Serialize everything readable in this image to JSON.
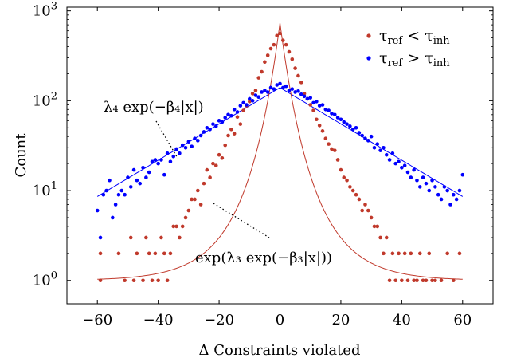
{
  "chart_data": {
    "type": "scatter",
    "xlabel": "Δ Constraints violated",
    "ylabel": "Count",
    "xscale": "linear",
    "yscale": "log",
    "xlim": [
      -70,
      70
    ],
    "ylim": [
      0.55,
      1100
    ],
    "x_ticks": [
      -60,
      -40,
      -20,
      0,
      20,
      40,
      60
    ],
    "x_tick_labels": [
      "−60",
      "−40",
      "−20",
      "0",
      "20",
      "40",
      "60"
    ],
    "y_ticks": [
      1,
      10,
      100,
      1000
    ],
    "y_tick_labels": [
      {
        "base": "10",
        "exp": "0"
      },
      {
        "base": "10",
        "exp": "1"
      },
      {
        "base": "10",
        "exp": "2"
      },
      {
        "base": "10",
        "exp": "3"
      }
    ],
    "grid": false,
    "legend_position": "top-right",
    "legend": [
      {
        "series": "red",
        "label_parts": [
          {
            "t": "τ",
            "sub": "ref"
          },
          {
            "t": " < "
          },
          {
            "t": "τ",
            "sub": "inh"
          }
        ]
      },
      {
        "series": "blue",
        "label_parts": [
          {
            "t": "τ",
            "sub": "ref"
          },
          {
            "t": " > "
          },
          {
            "t": "τ",
            "sub": "inh"
          }
        ]
      }
    ],
    "annotations": [
      {
        "text": "λ₄ exp(−β₄|x|)",
        "target": "blue-fit"
      },
      {
        "text": "exp(λ₃ exp(−β₃|x|))",
        "target": "red-fit"
      }
    ],
    "fits": [
      {
        "series": "blue",
        "form": "lambda4*exp(-beta4*|x|)",
        "lambda": 140,
        "beta": 0.0465
      },
      {
        "series": "red",
        "form": "exp(lambda3*exp(-beta3*|x|))",
        "lambda": 6.6,
        "beta": 0.0898
      }
    ],
    "series": [
      {
        "key": "red",
        "color": "#c0392b",
        "points": [
          [
            -59,
            2
          ],
          [
            -59,
            1
          ],
          [
            -53,
            2
          ],
          [
            -51,
            1
          ],
          [
            -49,
            3
          ],
          [
            -48,
            1
          ],
          [
            -47,
            2
          ],
          [
            -45,
            1
          ],
          [
            -44,
            3
          ],
          [
            -43,
            2
          ],
          [
            -42,
            1
          ],
          [
            -41,
            2
          ],
          [
            -40,
            1
          ],
          [
            -39,
            3
          ],
          [
            -38,
            2
          ],
          [
            -37,
            1
          ],
          [
            -36,
            2
          ],
          [
            -35,
            4
          ],
          [
            -34,
            4
          ],
          [
            -33,
            3
          ],
          [
            -32,
            4
          ],
          [
            -31,
            5
          ],
          [
            -30,
            6
          ],
          [
            -29,
            8
          ],
          [
            -28,
            8
          ],
          [
            -27,
            10
          ],
          [
            -26,
            7
          ],
          [
            -25,
            12
          ],
          [
            -24,
            17
          ],
          [
            -23,
            14
          ],
          [
            -22,
            20
          ],
          [
            -21,
            19
          ],
          [
            -20,
            25
          ],
          [
            -19,
            23
          ],
          [
            -18,
            32
          ],
          [
            -17,
            41
          ],
          [
            -16,
            48
          ],
          [
            -15,
            43
          ],
          [
            -14,
            66
          ],
          [
            -13,
            55
          ],
          [
            -12,
            78
          ],
          [
            -11,
            88
          ],
          [
            -10,
            98
          ],
          [
            -9,
            120
          ],
          [
            -8,
            130
          ],
          [
            -7,
            180
          ],
          [
            -6,
            210
          ],
          [
            -5,
            270
          ],
          [
            -4,
            320
          ],
          [
            -3,
            380
          ],
          [
            -2,
            420
          ],
          [
            -1,
            530
          ],
          [
            0,
            560
          ],
          [
            1,
            470
          ],
          [
            2,
            420
          ],
          [
            3,
            350
          ],
          [
            4,
            290
          ],
          [
            5,
            230
          ],
          [
            6,
            190
          ],
          [
            7,
            160
          ],
          [
            8,
            120
          ],
          [
            9,
            105
          ],
          [
            10,
            90
          ],
          [
            11,
            78
          ],
          [
            12,
            62
          ],
          [
            13,
            53
          ],
          [
            14,
            46
          ],
          [
            15,
            38
          ],
          [
            16,
            33
          ],
          [
            17,
            29
          ],
          [
            18,
            28
          ],
          [
            19,
            22
          ],
          [
            20,
            17
          ],
          [
            21,
            14
          ],
          [
            22,
            13
          ],
          [
            23,
            11
          ],
          [
            24,
            10
          ],
          [
            25,
            9
          ],
          [
            26,
            8
          ],
          [
            27,
            6
          ],
          [
            28,
            7
          ],
          [
            29,
            6
          ],
          [
            30,
            5
          ],
          [
            31,
            4
          ],
          [
            32,
            4
          ],
          [
            33,
            3
          ],
          [
            34,
            2
          ],
          [
            35,
            3
          ],
          [
            36,
            1
          ],
          [
            37,
            2
          ],
          [
            38,
            1
          ],
          [
            39,
            2
          ],
          [
            40,
            1
          ],
          [
            41,
            2
          ],
          [
            42,
            1
          ],
          [
            43,
            2
          ],
          [
            44,
            1
          ],
          [
            45,
            1
          ],
          [
            46,
            2
          ],
          [
            47,
            1
          ],
          [
            48,
            1
          ],
          [
            49,
            2
          ],
          [
            50,
            1
          ],
          [
            51,
            1
          ],
          [
            53,
            1
          ],
          [
            55,
            2
          ],
          [
            57,
            1
          ],
          [
            59,
            2
          ]
        ]
      },
      {
        "key": "blue",
        "color": "#0000ff",
        "points": [
          [
            -60,
            6
          ],
          [
            -59,
            3
          ],
          [
            -58,
            9
          ],
          [
            -57,
            10
          ],
          [
            -56,
            13
          ],
          [
            -55,
            5
          ],
          [
            -54,
            7
          ],
          [
            -53,
            9
          ],
          [
            -52,
            10
          ],
          [
            -51,
            9
          ],
          [
            -50,
            14
          ],
          [
            -49,
            11
          ],
          [
            -48,
            17
          ],
          [
            -47,
            13
          ],
          [
            -46,
            12
          ],
          [
            -45,
            18
          ],
          [
            -44,
            14
          ],
          [
            -43,
            16
          ],
          [
            -42,
            21
          ],
          [
            -41,
            22
          ],
          [
            -40,
            20
          ],
          [
            -39,
            22
          ],
          [
            -38,
            15
          ],
          [
            -37,
            26
          ],
          [
            -36,
            21
          ],
          [
            -35,
            24
          ],
          [
            -34,
            29
          ],
          [
            -33,
            26
          ],
          [
            -32,
            32
          ],
          [
            -31,
            30
          ],
          [
            -30,
            35
          ],
          [
            -29,
            31
          ],
          [
            -28,
            38
          ],
          [
            -27,
            36
          ],
          [
            -26,
            41
          ],
          [
            -25,
            45
          ],
          [
            -24,
            50
          ],
          [
            -23,
            48
          ],
          [
            -22,
            55
          ],
          [
            -21,
            52
          ],
          [
            -20,
            60
          ],
          [
            -19,
            58
          ],
          [
            -18,
            65
          ],
          [
            -17,
            70
          ],
          [
            -16,
            68
          ],
          [
            -15,
            80
          ],
          [
            -14,
            75
          ],
          [
            -13,
            88
          ],
          [
            -12,
            95
          ],
          [
            -11,
            90
          ],
          [
            -10,
            105
          ],
          [
            -9,
            100
          ],
          [
            -8,
            115
          ],
          [
            -7,
            110
          ],
          [
            -6,
            125
          ],
          [
            -5,
            130
          ],
          [
            -4,
            125
          ],
          [
            -3,
            140
          ],
          [
            -2,
            135
          ],
          [
            -1,
            150
          ],
          [
            0,
            155
          ],
          [
            1,
            140
          ],
          [
            2,
            145
          ],
          [
            3,
            130
          ],
          [
            4,
            135
          ],
          [
            5,
            125
          ],
          [
            6,
            128
          ],
          [
            7,
            118
          ],
          [
            8,
            112
          ],
          [
            9,
            105
          ],
          [
            10,
            108
          ],
          [
            11,
            95
          ],
          [
            12,
            98
          ],
          [
            13,
            88
          ],
          [
            14,
            90
          ],
          [
            15,
            80
          ],
          [
            16,
            78
          ],
          [
            17,
            72
          ],
          [
            18,
            70
          ],
          [
            19,
            65
          ],
          [
            20,
            62
          ],
          [
            21,
            58
          ],
          [
            22,
            55
          ],
          [
            23,
            52
          ],
          [
            24,
            48
          ],
          [
            25,
            50
          ],
          [
            26,
            44
          ],
          [
            27,
            41
          ],
          [
            28,
            38
          ],
          [
            29,
            36
          ],
          [
            30,
            40
          ],
          [
            31,
            30
          ],
          [
            32,
            33
          ],
          [
            33,
            28
          ],
          [
            34,
            30
          ],
          [
            35,
            25
          ],
          [
            36,
            22
          ],
          [
            37,
            26
          ],
          [
            38,
            20
          ],
          [
            39,
            21
          ],
          [
            40,
            18
          ],
          [
            41,
            19
          ],
          [
            42,
            16
          ],
          [
            43,
            14
          ],
          [
            44,
            17
          ],
          [
            45,
            13
          ],
          [
            46,
            11
          ],
          [
            47,
            14
          ],
          [
            48,
            12
          ],
          [
            49,
            10
          ],
          [
            50,
            13
          ],
          [
            51,
            11
          ],
          [
            52,
            9
          ],
          [
            53,
            8
          ],
          [
            54,
            11
          ],
          [
            55,
            10
          ],
          [
            56,
            7
          ],
          [
            57,
            9
          ],
          [
            58,
            8
          ],
          [
            59,
            10
          ],
          [
            60,
            15
          ]
        ]
      }
    ]
  }
}
